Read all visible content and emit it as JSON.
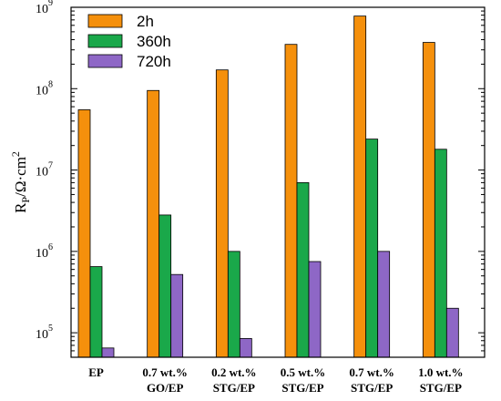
{
  "chart_data": {
    "type": "bar",
    "yscale": "log",
    "ylim": [
      50000,
      1000000000
    ],
    "ylabel": "R",
    "ylabel_sub": "P",
    "ylabel_unit": "/Ω·cm",
    "ylabel_sup": "2",
    "y_ticks": [
      {
        "base": "10",
        "exp": "5",
        "value": 100000
      },
      {
        "base": "10",
        "exp": "6",
        "value": 1000000
      },
      {
        "base": "10",
        "exp": "7",
        "value": 10000000
      },
      {
        "base": "10",
        "exp": "8",
        "value": 100000000
      },
      {
        "base": "10",
        "exp": "9",
        "value": 1000000000
      }
    ],
    "categories": [
      [
        "EP"
      ],
      [
        "0.7 wt.%",
        "GO/EP"
      ],
      [
        "0.2 wt.%",
        "STG/EP"
      ],
      [
        "0.5 wt.%",
        "STG/EP"
      ],
      [
        "0.7 wt.%",
        "STG/EP"
      ],
      [
        "1.0 wt.%",
        "STG/EP"
      ]
    ],
    "series": [
      {
        "name": "2h",
        "color": "#F5900C",
        "values": [
          55000000,
          95000000,
          170000000,
          350000000,
          780000000,
          370000000
        ]
      },
      {
        "name": "360h",
        "color": "#1AA84A",
        "values": [
          650000,
          2800000,
          1000000,
          7000000,
          24000000,
          18000000
        ]
      },
      {
        "name": "720h",
        "color": "#8E67C6",
        "values": [
          65000,
          520000,
          85000,
          750000,
          1000000,
          200000
        ]
      }
    ],
    "legend_position": "top-left",
    "grid": false
  }
}
